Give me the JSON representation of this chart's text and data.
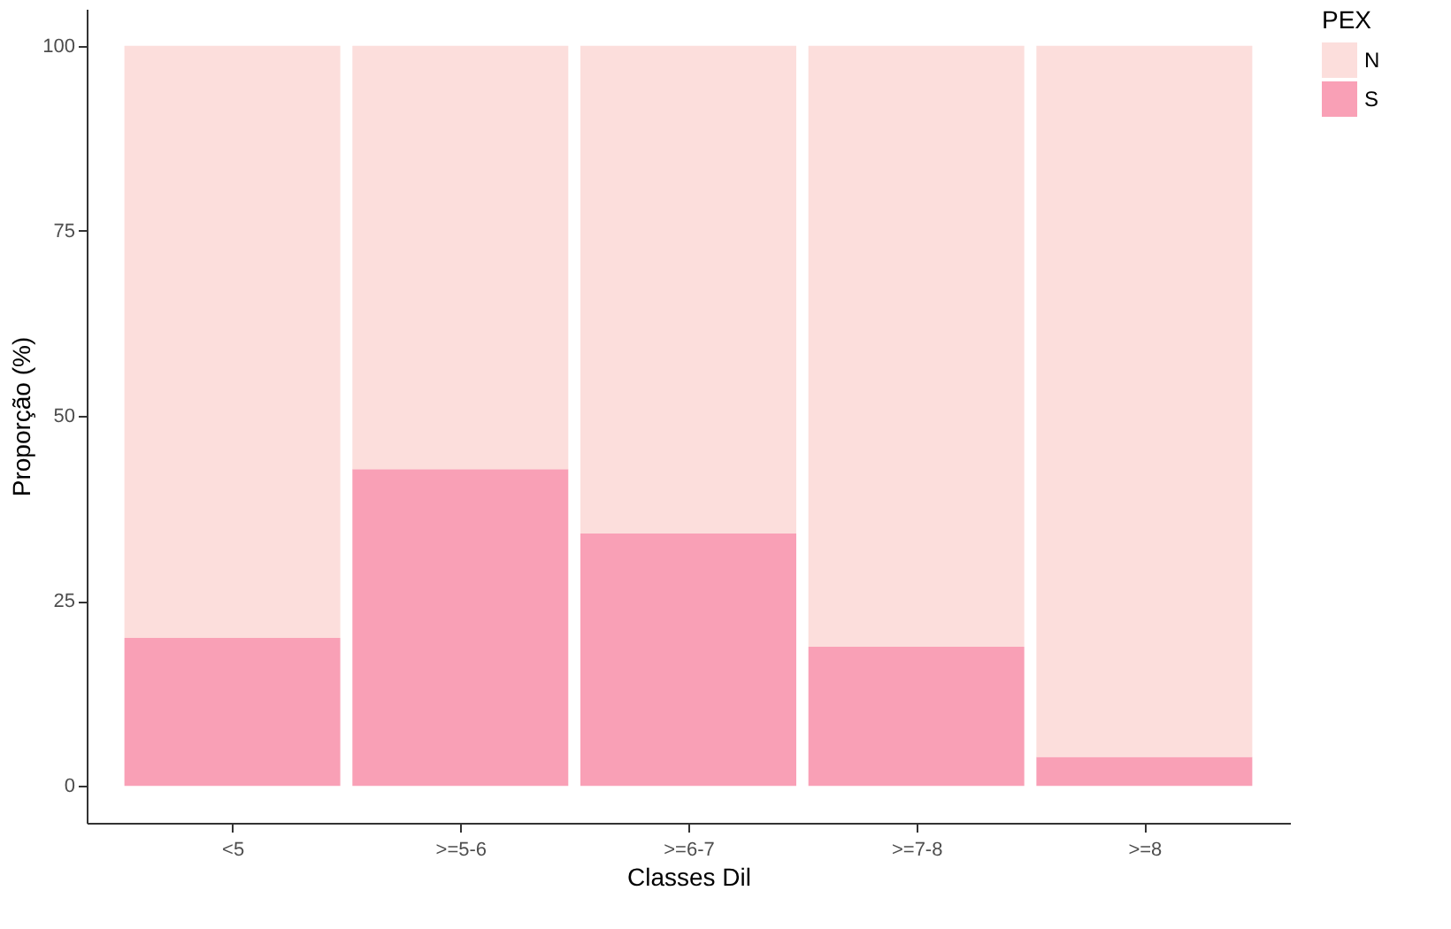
{
  "chart_data": {
    "type": "bar",
    "stacked": true,
    "xlabel": "Classes Dil",
    "ylabel": "Proporção (%)",
    "legend_title": "PEX",
    "legend": "right",
    "grid": false,
    "categories": [
      "<5",
      ">=5-6",
      ">=6-7",
      ">=7-8",
      ">=8"
    ],
    "series": [
      {
        "name": "S",
        "color": "#f9a0b6",
        "values": [
          20.0,
          42.8,
          34.1,
          18.8,
          3.9
        ]
      },
      {
        "name": "N",
        "color": "#fcdedc",
        "values": [
          80.0,
          57.2,
          65.9,
          81.2,
          96.1
        ]
      }
    ],
    "ylim": [
      -5,
      105
    ],
    "yticks": [
      0,
      25,
      50,
      75,
      100
    ]
  }
}
